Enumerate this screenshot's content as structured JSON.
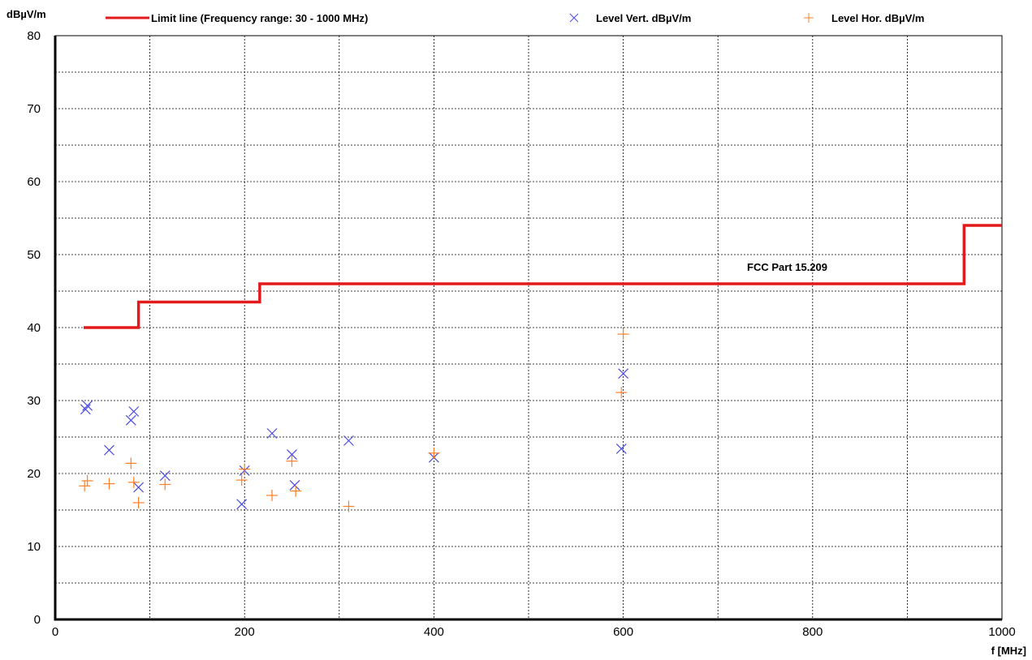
{
  "chart_data": {
    "type": "scatter",
    "ylabel": "dBµV/m",
    "xlabel": "f [MHz]",
    "xlim": [
      0,
      1000
    ],
    "ylim": [
      0,
      80
    ],
    "x_major_ticks": [
      0,
      200,
      400,
      600,
      800,
      1000
    ],
    "y_major_ticks": [
      0,
      10,
      20,
      30,
      40,
      50,
      60,
      70,
      80
    ],
    "grid": true,
    "legend_placement": "top",
    "annotation": "FCC Part 15.209",
    "limit_line": {
      "name": "Limit line (Frequency range: 30 - 1000 MHz)",
      "color": "#e31a1c",
      "points": [
        [
          30,
          40
        ],
        [
          88,
          40
        ],
        [
          88,
          43.5
        ],
        [
          216,
          43.5
        ],
        [
          216,
          46
        ],
        [
          960,
          46
        ],
        [
          960,
          54
        ],
        [
          1000,
          54
        ]
      ]
    },
    "series": [
      {
        "name": "Level Vert. dBµV/m",
        "marker": "x",
        "color": "#4b4be0",
        "points": [
          [
            32,
            28.8
          ],
          [
            34,
            29.3
          ],
          [
            57,
            23.2
          ],
          [
            80,
            27.3
          ],
          [
            83,
            28.5
          ],
          [
            88,
            18.1
          ],
          [
            116,
            19.7
          ],
          [
            197,
            15.8
          ],
          [
            200,
            20.4
          ],
          [
            229,
            25.5
          ],
          [
            250,
            22.6
          ],
          [
            253,
            18.4
          ],
          [
            310,
            24.5
          ],
          [
            400,
            22.2
          ],
          [
            598,
            23.4
          ],
          [
            600,
            33.7
          ]
        ]
      },
      {
        "name": "Level Hor. dBµV/m",
        "marker": "+",
        "color": "#ff7f27",
        "points": [
          [
            31,
            18.3
          ],
          [
            34,
            19.0
          ],
          [
            57,
            18.6
          ],
          [
            80,
            21.4
          ],
          [
            83,
            18.8
          ],
          [
            88,
            16.0
          ],
          [
            116,
            18.5
          ],
          [
            197,
            19.1
          ],
          [
            200,
            20.6
          ],
          [
            229,
            17.0
          ],
          [
            250,
            21.7
          ],
          [
            254,
            17.6
          ],
          [
            310,
            15.5
          ],
          [
            400,
            22.8
          ],
          [
            598,
            31.1
          ],
          [
            600,
            39.1
          ]
        ]
      }
    ]
  }
}
